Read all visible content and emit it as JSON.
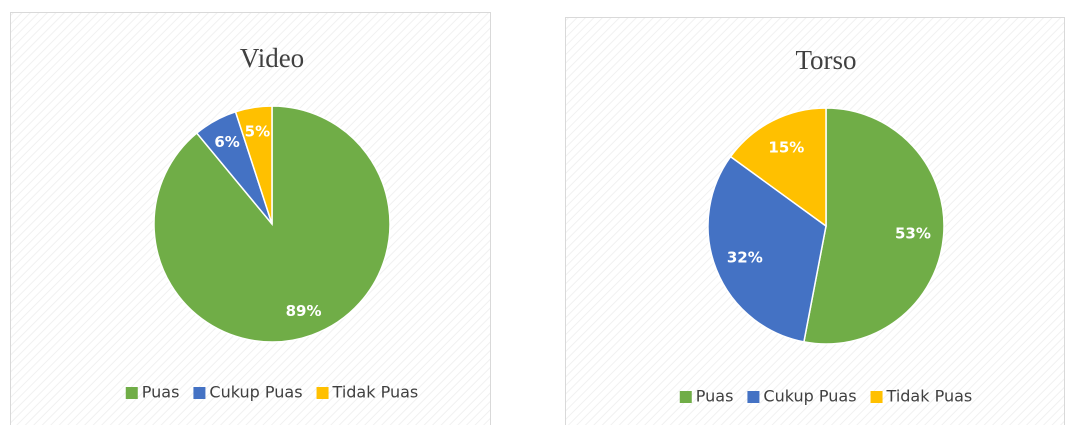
{
  "chart_data": [
    {
      "type": "pie",
      "title": "Video",
      "categories": [
        "Puas",
        "Cukup Puas",
        "Tidak Puas"
      ],
      "values": [
        89,
        6,
        5
      ],
      "value_labels": [
        "89%",
        "6%",
        "5%"
      ],
      "colors": [
        "#70ad47",
        "#4472c4",
        "#ffc000"
      ],
      "legend": "bottom"
    },
    {
      "type": "pie",
      "title": "Torso",
      "categories": [
        "Puas",
        "Cukup Puas",
        "Tidak Puas"
      ],
      "values": [
        53,
        32,
        15
      ],
      "value_labels": [
        "53%",
        "32%",
        "15%"
      ],
      "colors": [
        "#70ad47",
        "#4472c4",
        "#ffc000"
      ],
      "legend": "bottom"
    }
  ]
}
